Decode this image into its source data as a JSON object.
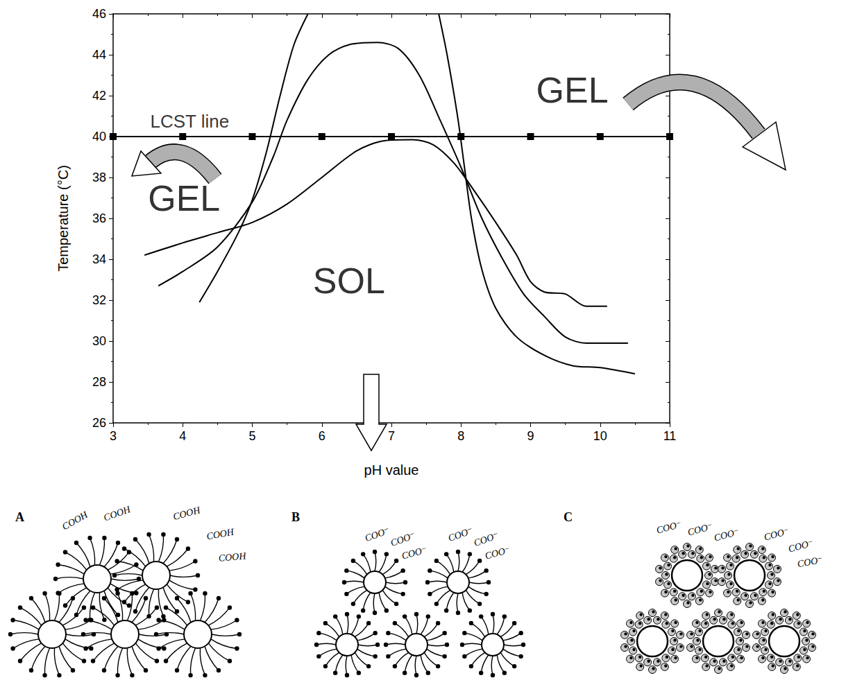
{
  "chart_data": {
    "type": "line",
    "x_label": "pH value",
    "y_label": "Temperature (°C)",
    "xlim": [
      3,
      11
    ],
    "xticks": [
      3,
      4,
      5,
      6,
      7,
      8,
      9,
      10,
      11
    ],
    "ylim": [
      26,
      46
    ],
    "yticks": [
      26,
      28,
      30,
      32,
      34,
      36,
      38,
      40,
      42,
      44,
      46
    ],
    "grid": false,
    "series": [
      {
        "color": "#000000",
        "marker": "none",
        "line_style": "solid",
        "x": [
          4.24,
          4.5,
          4.8,
          5.0,
          5.2,
          5.4,
          5.6,
          5.8,
          null,
          7.68,
          7.8,
          7.95,
          8.05,
          8.15,
          8.3,
          8.5,
          8.8,
          9.2,
          9.6,
          10.0,
          10.5
        ],
        "values": [
          31.9,
          33.4,
          35.3,
          36.9,
          39.2,
          42.0,
          44.5,
          46,
          null,
          46,
          44,
          41,
          38.5,
          36,
          33.5,
          31.6,
          30.2,
          29.3,
          28.8,
          28.7,
          28.4
        ]
      },
      {
        "color": "#000000",
        "marker": "none",
        "line_style": "solid",
        "x": [
          3.65,
          4.0,
          4.5,
          5.0,
          5.3,
          5.5,
          5.8,
          6.1,
          6.4,
          6.8,
          7.1,
          7.4,
          7.7,
          8.0,
          8.3,
          8.6,
          8.9,
          9.2,
          9.5,
          9.8,
          10.4
        ],
        "values": [
          32.7,
          33.4,
          34.6,
          36.8,
          39.0,
          40.8,
          42.8,
          44.0,
          44.5,
          44.6,
          44.3,
          43.0,
          40.8,
          38.5,
          36.0,
          34.0,
          32.3,
          31.2,
          30.2,
          29.9,
          29.9
        ]
      },
      {
        "color": "#000000",
        "marker": "none",
        "line_style": "solid",
        "x": [
          3.45,
          4.0,
          4.5,
          5.0,
          5.5,
          6.0,
          6.5,
          6.9,
          7.3,
          7.6,
          7.9,
          8.2,
          8.5,
          8.8,
          9.0,
          9.2,
          9.5,
          9.8,
          10.1
        ],
        "values": [
          34.2,
          34.8,
          35.3,
          35.8,
          36.7,
          38.0,
          39.3,
          39.8,
          39.85,
          39.6,
          38.7,
          37.3,
          35.8,
          34.2,
          32.9,
          32.4,
          32.3,
          31.7,
          31.7
        ]
      },
      {
        "color": "#000000",
        "marker": "square",
        "line_style": "solid",
        "x": [
          3,
          4,
          5,
          6,
          7,
          8,
          9,
          10,
          11
        ],
        "values": [
          40,
          40,
          40,
          40,
          40,
          40,
          40,
          40,
          40
        ]
      }
    ],
    "annotations": [
      {
        "text": "LCST line",
        "x": 4.1,
        "y": 40.75
      },
      {
        "text": "GEL",
        "x": 4.02,
        "y": 37.0
      },
      {
        "text": "GEL",
        "x": 9.6,
        "y": 42.27
      },
      {
        "text": "SOL",
        "x": 6.39,
        "y": 32.95
      }
    ]
  },
  "diagrams": {
    "panels": [
      {
        "label": "A",
        "texts": [
          "COOH",
          "COOH",
          "COOH",
          "COOH",
          "COOH"
        ]
      },
      {
        "label": "B",
        "texts": [
          "COO⁻",
          "COO⁻",
          "COO⁻",
          "COO⁻",
          "COO⁻",
          "COO⁻"
        ]
      },
      {
        "label": "C",
        "texts": [
          "COO⁻",
          "COO⁻",
          "COO⁻",
          "COO⁻",
          "COO⁻",
          "COO⁻"
        ]
      }
    ]
  }
}
